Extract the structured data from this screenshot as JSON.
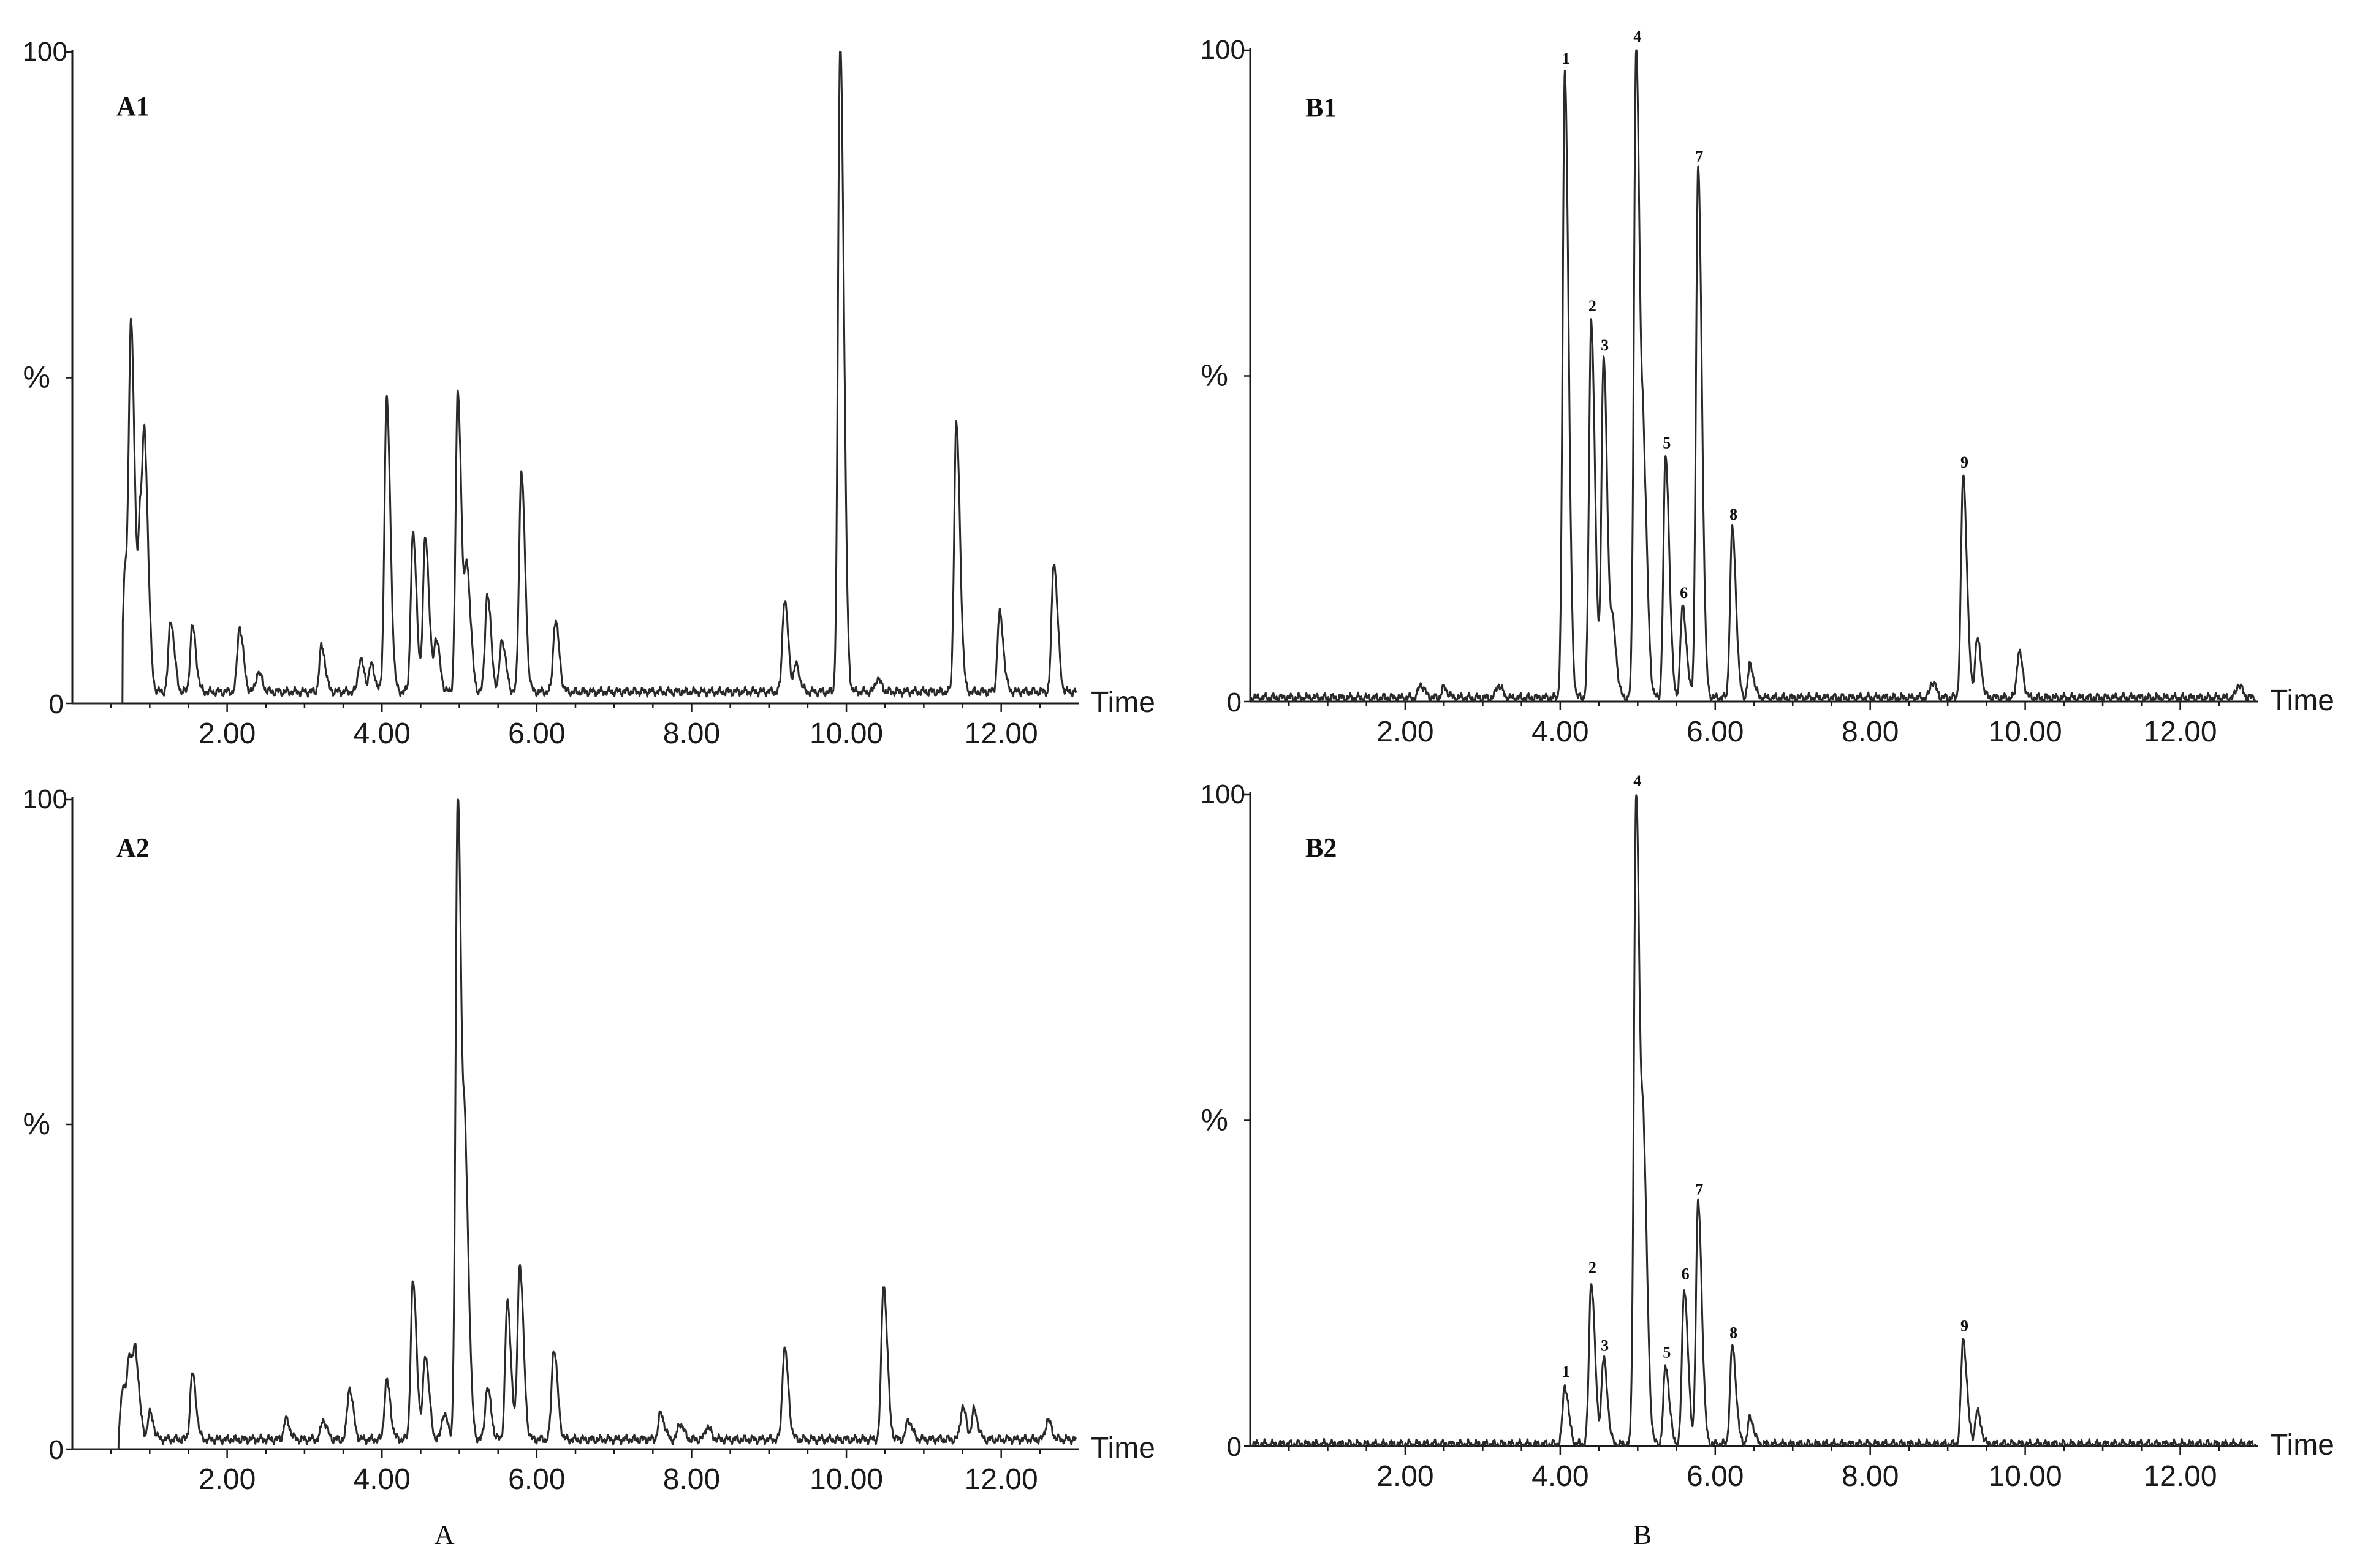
{
  "figure": {
    "group_labels": [
      {
        "id": "A",
        "text": "A"
      },
      {
        "id": "B",
        "text": "B"
      }
    ]
  },
  "chart_data": [
    {
      "type": "line",
      "id": "A1",
      "title": "A1",
      "xlabel": "Time",
      "ylabel": "%",
      "xlim": [
        0,
        13.0
      ],
      "ylim": [
        0,
        100
      ],
      "x_ticks": [
        2.0,
        4.0,
        6.0,
        8.0,
        10.0,
        12.0
      ],
      "x_tick_labels": [
        "2.00",
        "4.00",
        "6.00",
        "8.00",
        "10.00",
        "12.00"
      ],
      "y_tick_labels": [
        "100",
        "%",
        "0"
      ],
      "data_start": 0.65,
      "baseline": 1.8,
      "peaks": [
        {
          "rt": 0.68,
          "height": 18
        },
        {
          "rt": 0.76,
          "height": 53
        },
        {
          "rt": 0.88,
          "height": 25
        },
        {
          "rt": 0.94,
          "height": 28
        },
        {
          "rt": 1.27,
          "height": 11
        },
        {
          "rt": 1.55,
          "height": 10
        },
        {
          "rt": 2.16,
          "height": 10
        },
        {
          "rt": 2.4,
          "height": 3
        },
        {
          "rt": 3.22,
          "height": 7
        },
        {
          "rt": 3.72,
          "height": 5
        },
        {
          "rt": 3.86,
          "height": 4
        },
        {
          "rt": 4.06,
          "height": 45
        },
        {
          "rt": 4.4,
          "height": 24
        },
        {
          "rt": 4.56,
          "height": 24
        },
        {
          "rt": 4.7,
          "height": 8
        },
        {
          "rt": 4.98,
          "height": 46
        },
        {
          "rt": 5.1,
          "height": 18
        },
        {
          "rt": 5.36,
          "height": 15
        },
        {
          "rt": 5.55,
          "height": 8
        },
        {
          "rt": 5.8,
          "height": 34
        },
        {
          "rt": 6.24,
          "height": 11
        },
        {
          "rt": 9.2,
          "height": 14
        },
        {
          "rt": 9.35,
          "height": 4
        },
        {
          "rt": 9.92,
          "height": 100
        },
        {
          "rt": 10.4,
          "height": 2
        },
        {
          "rt": 11.42,
          "height": 41
        },
        {
          "rt": 11.98,
          "height": 12
        },
        {
          "rt": 12.68,
          "height": 20
        }
      ]
    },
    {
      "type": "line",
      "id": "B1",
      "title": "B1",
      "xlabel": "Time",
      "ylabel": "%",
      "xlim": [
        0,
        13.0
      ],
      "ylim": [
        0,
        100
      ],
      "x_ticks": [
        2.0,
        4.0,
        6.0,
        8.0,
        10.0,
        12.0
      ],
      "x_tick_labels": [
        "2.00",
        "4.00",
        "6.00",
        "8.00",
        "10.00",
        "12.00"
      ],
      "y_tick_labels": [
        "100",
        "%",
        "0"
      ],
      "data_start": 0.0,
      "baseline": 0.6,
      "peaks": [
        {
          "rt": 2.2,
          "height": 2
        },
        {
          "rt": 2.5,
          "height": 1.5
        },
        {
          "rt": 3.2,
          "height": 2
        },
        {
          "rt": 4.06,
          "height": 96,
          "label": "1"
        },
        {
          "rt": 4.4,
          "height": 58,
          "label": "2"
        },
        {
          "rt": 4.56,
          "height": 52,
          "label": "3"
        },
        {
          "rt": 4.68,
          "height": 10
        },
        {
          "rt": 4.98,
          "height": 100,
          "label": "4"
        },
        {
          "rt": 5.08,
          "height": 30
        },
        {
          "rt": 5.36,
          "height": 37,
          "label": "5"
        },
        {
          "rt": 5.58,
          "height": 14,
          "label": "6"
        },
        {
          "rt": 5.78,
          "height": 81,
          "label": "7"
        },
        {
          "rt": 6.22,
          "height": 26,
          "label": "8"
        },
        {
          "rt": 6.45,
          "height": 5
        },
        {
          "rt": 8.8,
          "height": 2.5
        },
        {
          "rt": 9.2,
          "height": 34,
          "label": "9"
        },
        {
          "rt": 9.38,
          "height": 9
        },
        {
          "rt": 9.92,
          "height": 7
        },
        {
          "rt": 12.75,
          "height": 2
        }
      ]
    },
    {
      "type": "line",
      "id": "A2",
      "title": "A2",
      "xlabel": "Time",
      "ylabel": "%",
      "xlim": [
        0,
        13.0
      ],
      "ylim": [
        0,
        100
      ],
      "x_ticks": [
        2.0,
        4.0,
        6.0,
        8.0,
        10.0,
        12.0
      ],
      "x_tick_labels": [
        "2.00",
        "4.00",
        "6.00",
        "8.00",
        "10.00",
        "12.00"
      ],
      "y_tick_labels": [
        "100",
        "%",
        "0"
      ],
      "data_start": 0.6,
      "baseline": 1.5,
      "peaks": [
        {
          "rt": 0.65,
          "height": 8
        },
        {
          "rt": 0.74,
          "height": 12
        },
        {
          "rt": 0.82,
          "height": 11
        },
        {
          "rt": 1.0,
          "height": 4
        },
        {
          "rt": 1.55,
          "height": 10
        },
        {
          "rt": 2.76,
          "height": 3
        },
        {
          "rt": 3.24,
          "height": 3
        },
        {
          "rt": 3.58,
          "height": 8
        },
        {
          "rt": 4.06,
          "height": 9
        },
        {
          "rt": 4.4,
          "height": 24
        },
        {
          "rt": 4.56,
          "height": 13
        },
        {
          "rt": 4.8,
          "height": 4
        },
        {
          "rt": 4.98,
          "height": 100
        },
        {
          "rt": 5.08,
          "height": 36
        },
        {
          "rt": 5.36,
          "height": 8
        },
        {
          "rt": 5.62,
          "height": 21
        },
        {
          "rt": 5.78,
          "height": 27
        },
        {
          "rt": 6.22,
          "height": 14
        },
        {
          "rt": 7.6,
          "height": 4
        },
        {
          "rt": 7.85,
          "height": 2.5
        },
        {
          "rt": 8.2,
          "height": 2
        },
        {
          "rt": 9.2,
          "height": 14
        },
        {
          "rt": 10.48,
          "height": 24
        },
        {
          "rt": 10.8,
          "height": 3
        },
        {
          "rt": 11.5,
          "height": 5
        },
        {
          "rt": 11.65,
          "height": 4.5
        },
        {
          "rt": 12.6,
          "height": 3
        }
      ]
    },
    {
      "type": "line",
      "id": "B2",
      "title": "B2",
      "xlabel": "Time",
      "ylabel": "%",
      "xlim": [
        0,
        13.0
      ],
      "ylim": [
        0,
        100
      ],
      "x_ticks": [
        2.0,
        4.0,
        6.0,
        8.0,
        10.0,
        12.0
      ],
      "x_tick_labels": [
        "2.00",
        "4.00",
        "6.00",
        "8.00",
        "10.00",
        "12.00"
      ],
      "y_tick_labels": [
        "100",
        "%",
        "0"
      ],
      "data_start": 0.0,
      "baseline": 0.3,
      "peaks": [
        {
          "rt": 4.06,
          "height": 9,
          "label": "1"
        },
        {
          "rt": 4.4,
          "height": 25,
          "label": "2"
        },
        {
          "rt": 4.56,
          "height": 13,
          "label": "3"
        },
        {
          "rt": 4.98,
          "height": 100,
          "label": "4"
        },
        {
          "rt": 5.08,
          "height": 38
        },
        {
          "rt": 5.36,
          "height": 12,
          "label": "5"
        },
        {
          "rt": 5.6,
          "height": 24,
          "label": "6"
        },
        {
          "rt": 5.78,
          "height": 37,
          "label": "7"
        },
        {
          "rt": 6.22,
          "height": 15,
          "label": "8"
        },
        {
          "rt": 6.45,
          "height": 4
        },
        {
          "rt": 9.2,
          "height": 16,
          "label": "9"
        },
        {
          "rt": 9.38,
          "height": 5
        }
      ]
    }
  ]
}
